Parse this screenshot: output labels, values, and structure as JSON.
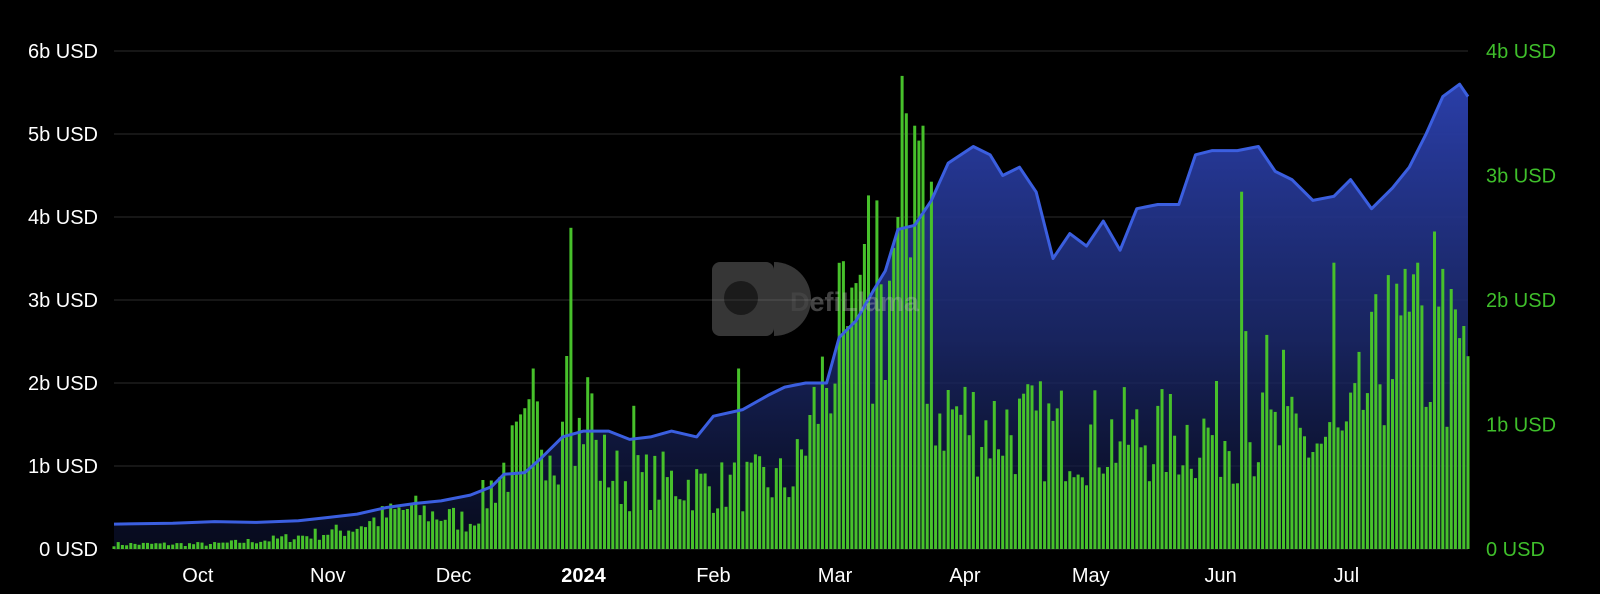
{
  "chart_data": {
    "type": "bar+line",
    "watermark": "DefiLlama",
    "colors": {
      "background": "#000000",
      "line": "#3b5fe0",
      "area_top": "#26399a",
      "bars": "#47c12b",
      "right_axis_text": "#3fbf2b",
      "grid": "#2b2b2b"
    },
    "x_ticks": [
      {
        "label": "Oct",
        "date": "2023-10-01"
      },
      {
        "label": "Nov",
        "date": "2023-11-01"
      },
      {
        "label": "Dec",
        "date": "2023-12-01"
      },
      {
        "label": "2024",
        "date": "2024-01-01",
        "bold": true
      },
      {
        "label": "Feb",
        "date": "2024-02-01"
      },
      {
        "label": "Mar",
        "date": "2024-03-01"
      },
      {
        "label": "Apr",
        "date": "2024-04-01"
      },
      {
        "label": "May",
        "date": "2024-05-01"
      },
      {
        "label": "Jun",
        "date": "2024-06-01"
      },
      {
        "label": "Jul",
        "date": "2024-07-01"
      }
    ],
    "x_range": [
      "2023-09-11",
      "2024-07-30"
    ],
    "left_axis": {
      "ylim": [
        0,
        6
      ],
      "ticks": [
        {
          "value": 0,
          "label": "0 USD"
        },
        {
          "value": 1,
          "label": "1b USD"
        },
        {
          "value": 2,
          "label": "2b USD"
        },
        {
          "value": 3,
          "label": "3b USD"
        },
        {
          "value": 4,
          "label": "4b USD"
        },
        {
          "value": 5,
          "label": "5b USD"
        },
        {
          "value": 6,
          "label": "6b USD"
        }
      ]
    },
    "right_axis": {
      "ylim": [
        0,
        4
      ],
      "ticks": [
        {
          "value": 0,
          "label": "0 USD"
        },
        {
          "value": 1,
          "label": "1b USD"
        },
        {
          "value": 2,
          "label": "2b USD"
        },
        {
          "value": 3,
          "label": "3b USD"
        },
        {
          "value": 4,
          "label": "4b USD"
        }
      ]
    },
    "line_series": {
      "axis": "left",
      "unit": "b USD",
      "points": [
        [
          "2023-09-11",
          0.3
        ],
        [
          "2023-09-25",
          0.31
        ],
        [
          "2023-10-05",
          0.33
        ],
        [
          "2023-10-15",
          0.32
        ],
        [
          "2023-10-25",
          0.34
        ],
        [
          "2023-11-01",
          0.38
        ],
        [
          "2023-11-08",
          0.42
        ],
        [
          "2023-11-15",
          0.5
        ],
        [
          "2023-11-22",
          0.55
        ],
        [
          "2023-11-28",
          0.58
        ],
        [
          "2023-12-05",
          0.65
        ],
        [
          "2023-12-10",
          0.75
        ],
        [
          "2023-12-13",
          0.9
        ],
        [
          "2023-12-18",
          0.92
        ],
        [
          "2023-12-22",
          1.1
        ],
        [
          "2023-12-27",
          1.35
        ],
        [
          "2024-01-01",
          1.42
        ],
        [
          "2024-01-07",
          1.42
        ],
        [
          "2024-01-12",
          1.32
        ],
        [
          "2024-01-17",
          1.35
        ],
        [
          "2024-01-22",
          1.42
        ],
        [
          "2024-01-28",
          1.35
        ],
        [
          "2024-02-01",
          1.6
        ],
        [
          "2024-02-08",
          1.68
        ],
        [
          "2024-02-14",
          1.85
        ],
        [
          "2024-02-18",
          1.95
        ],
        [
          "2024-02-23",
          2.0
        ],
        [
          "2024-02-28",
          2.0
        ],
        [
          "2024-03-02",
          2.55
        ],
        [
          "2024-03-06",
          2.75
        ],
        [
          "2024-03-10",
          3.1
        ],
        [
          "2024-03-13",
          3.35
        ],
        [
          "2024-03-16",
          3.85
        ],
        [
          "2024-03-20",
          3.9
        ],
        [
          "2024-03-24",
          4.2
        ],
        [
          "2024-03-28",
          4.65
        ],
        [
          "2024-04-03",
          4.85
        ],
        [
          "2024-04-07",
          4.75
        ],
        [
          "2024-04-10",
          4.5
        ],
        [
          "2024-04-14",
          4.6
        ],
        [
          "2024-04-18",
          4.3
        ],
        [
          "2024-04-22",
          3.5
        ],
        [
          "2024-04-26",
          3.8
        ],
        [
          "2024-04-30",
          3.65
        ],
        [
          "2024-05-04",
          3.95
        ],
        [
          "2024-05-08",
          3.6
        ],
        [
          "2024-05-12",
          4.1
        ],
        [
          "2024-05-17",
          4.15
        ],
        [
          "2024-05-22",
          4.15
        ],
        [
          "2024-05-26",
          4.75
        ],
        [
          "2024-05-30",
          4.8
        ],
        [
          "2024-06-05",
          4.8
        ],
        [
          "2024-06-10",
          4.85
        ],
        [
          "2024-06-14",
          4.55
        ],
        [
          "2024-06-18",
          4.45
        ],
        [
          "2024-06-23",
          4.2
        ],
        [
          "2024-06-28",
          4.25
        ],
        [
          "2024-07-02",
          4.45
        ],
        [
          "2024-07-07",
          4.1
        ],
        [
          "2024-07-12",
          4.35
        ],
        [
          "2024-07-16",
          4.6
        ],
        [
          "2024-07-20",
          5.0
        ],
        [
          "2024-07-24",
          5.45
        ],
        [
          "2024-07-28",
          5.6
        ],
        [
          "2024-07-30",
          5.45
        ]
      ]
    },
    "bar_series": {
      "axis": "right",
      "unit": "b USD",
      "anchors": [
        [
          "2023-09-11",
          0.04
        ],
        [
          "2023-10-05",
          0.04
        ],
        [
          "2023-10-20",
          0.08
        ],
        [
          "2023-11-05",
          0.15
        ],
        [
          "2023-11-20",
          0.32
        ],
        [
          "2023-12-05",
          0.22
        ],
        [
          "2023-12-12",
          0.6
        ],
        [
          "2023-12-22",
          1.0
        ],
        [
          "2024-01-01",
          0.85
        ],
        [
          "2024-01-10",
          0.55
        ],
        [
          "2024-01-20",
          0.55
        ],
        [
          "2024-02-01",
          0.5
        ],
        [
          "2024-02-20",
          0.55
        ],
        [
          "2024-03-01",
          1.6
        ],
        [
          "2024-03-10",
          1.6
        ],
        [
          "2024-03-15",
          2.3
        ],
        [
          "2024-03-22",
          1.2
        ],
        [
          "2024-04-05",
          1.0
        ],
        [
          "2024-04-20",
          0.95
        ],
        [
          "2024-05-05",
          0.9
        ],
        [
          "2024-05-20",
          0.9
        ],
        [
          "2024-06-05",
          0.95
        ],
        [
          "2024-06-20",
          0.85
        ],
        [
          "2024-07-01",
          0.85
        ],
        [
          "2024-07-10",
          1.6
        ],
        [
          "2024-07-20",
          1.55
        ],
        [
          "2024-07-30",
          1.5
        ]
      ],
      "spikes": [
        [
          "2023-12-20",
          1.45
        ],
        [
          "2023-12-28",
          1.55
        ],
        [
          "2023-12-29",
          2.58
        ],
        [
          "2024-01-02",
          1.38
        ],
        [
          "2024-01-03",
          1.25
        ],
        [
          "2024-01-13",
          1.15
        ],
        [
          "2024-02-07",
          1.45
        ],
        [
          "2024-03-05",
          2.1
        ],
        [
          "2024-03-08",
          2.45
        ],
        [
          "2024-03-09",
          2.84
        ],
        [
          "2024-03-11",
          2.8
        ],
        [
          "2024-03-17",
          3.8
        ],
        [
          "2024-03-18",
          3.5
        ],
        [
          "2024-03-20",
          3.4
        ],
        [
          "2024-03-21",
          3.28
        ],
        [
          "2024-03-22",
          3.4
        ],
        [
          "2024-03-24",
          2.95
        ],
        [
          "2024-06-06",
          2.87
        ],
        [
          "2024-06-07",
          1.75
        ],
        [
          "2024-06-12",
          1.72
        ],
        [
          "2024-06-16",
          1.6
        ],
        [
          "2024-06-28",
          2.3
        ],
        [
          "2024-07-11",
          2.2
        ],
        [
          "2024-07-15",
          2.25
        ],
        [
          "2024-07-18",
          2.3
        ],
        [
          "2024-07-22",
          2.55
        ],
        [
          "2024-07-24",
          2.25
        ]
      ]
    }
  }
}
